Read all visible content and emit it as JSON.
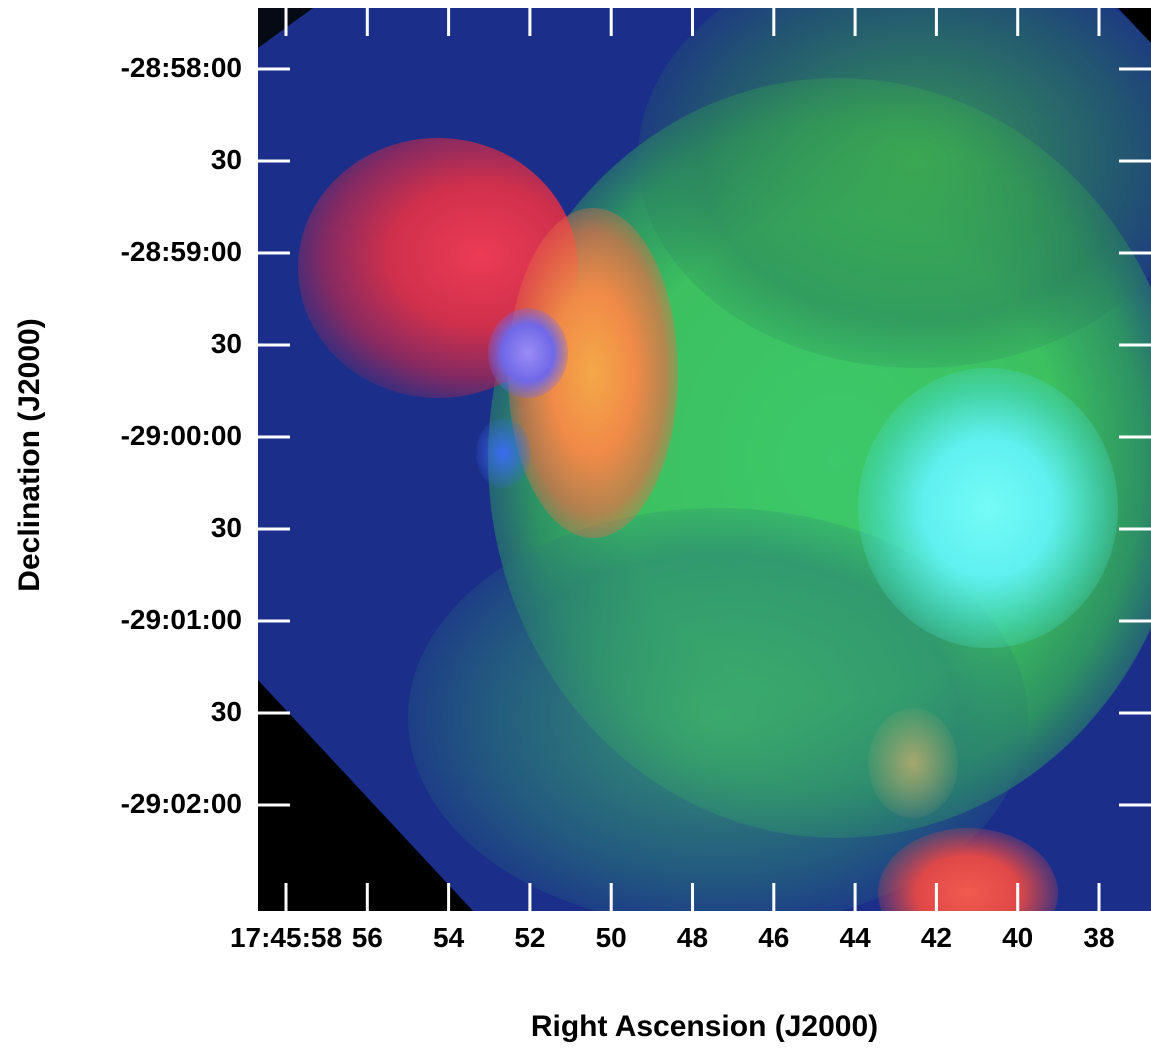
{
  "axes": {
    "x_title": "Right Ascension (J2000)",
    "y_title": "Declination (J2000)",
    "x_ticks": [
      "17:45:58",
      "56",
      "54",
      "52",
      "50",
      "48",
      "46",
      "44",
      "42",
      "40",
      "38"
    ],
    "y_ticks": [
      "-28:58:00",
      "30",
      "-28:59:00",
      "30",
      "-29:00:00",
      "30",
      "-29:01:00",
      "30",
      "-29:02:00"
    ]
  },
  "colors": {
    "background_field": "#1b2f8a",
    "red_emission": "#e0384a",
    "green_emission": "#3fd060",
    "cyan_emission": "#5ff0f0",
    "orange_emission": "#f0a040"
  }
}
